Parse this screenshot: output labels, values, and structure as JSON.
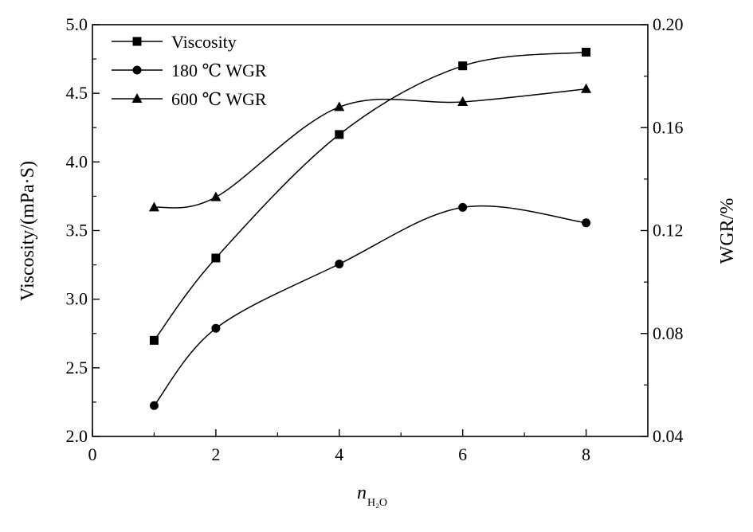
{
  "chart_data": {
    "type": "line",
    "x": [
      1,
      2,
      4,
      6,
      8
    ],
    "xlabel": "n",
    "xlabel_subscript": "H₂O",
    "xlim": [
      0,
      9
    ],
    "xticks": [
      0,
      2,
      4,
      6,
      8
    ],
    "xtick_labels": [
      "0",
      "2",
      "4",
      "6",
      "8"
    ],
    "y_left": {
      "label": "Viscosity/(mPa·S)",
      "lim": [
        2.0,
        5.0
      ],
      "ticks": [
        2.0,
        2.5,
        3.0,
        3.5,
        4.0,
        4.5,
        5.0
      ],
      "tick_labels": [
        "2.0",
        "2.5",
        "3.0",
        "3.5",
        "4.0",
        "4.5",
        "5.0"
      ]
    },
    "y_right": {
      "label": "WGR/%",
      "lim": [
        0.04,
        0.2
      ],
      "ticks": [
        0.04,
        0.08,
        0.12,
        0.16,
        0.2
      ],
      "tick_labels": [
        "0.04",
        "0.08",
        "0.12",
        "0.16",
        "0.20"
      ]
    },
    "series": [
      {
        "name": "Viscosity",
        "axis": "left",
        "marker": "square",
        "values": [
          2.7,
          3.3,
          4.2,
          4.7,
          4.8
        ]
      },
      {
        "name": "180 ℃ WGR",
        "axis": "right",
        "marker": "circle",
        "values": [
          0.052,
          0.082,
          0.107,
          0.129,
          0.123
        ]
      },
      {
        "name": "600 ℃ WGR",
        "axis": "right",
        "marker": "triangle",
        "values": [
          0.129,
          0.133,
          0.168,
          0.17,
          0.175
        ]
      }
    ],
    "legend_position": "top-left",
    "grid": false
  }
}
